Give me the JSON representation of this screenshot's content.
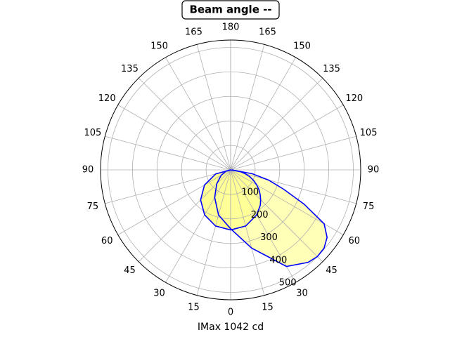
{
  "chart_data": {
    "type": "polar",
    "title": "Beam angle --",
    "xlabel": "IMax 1042 cd",
    "x": [
      -90,
      -75,
      -60,
      -45,
      -30,
      -15,
      0,
      15,
      30,
      40,
      45,
      50,
      55,
      60,
      65,
      70,
      75,
      80,
      90
    ],
    "series": [
      {
        "color": "#0000ff",
        "fill": "#ffff66",
        "values": [
          0,
          63,
          123,
          173,
          212,
          237,
          245,
          237,
          212,
          188,
          173,
          157,
          141,
          123,
          104,
          84,
          63,
          43,
          0
        ]
      },
      {
        "color": "#0000ff",
        "fill": "#ffff99",
        "values": [
          0,
          20,
          45,
          80,
          130,
          190,
          240,
          330,
          455,
          492,
          500,
          497,
          480,
          440,
          330,
          230,
          160,
          90,
          5
        ]
      }
    ],
    "rlim": [
      0,
      530
    ],
    "rticks": [
      100,
      200,
      300,
      400,
      500
    ],
    "angle_ticks": [
      0,
      15,
      30,
      45,
      60,
      75,
      90,
      105,
      120,
      135,
      150,
      165,
      180
    ],
    "grid": true
  }
}
